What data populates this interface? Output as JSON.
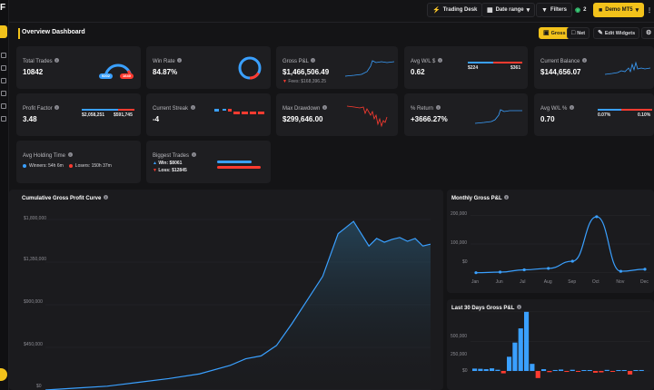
{
  "topbar": {
    "trading_desk": "Trading Desk",
    "date_range": "Date range",
    "filters": "Filters",
    "signal_count": "2",
    "account": "Demo MT5"
  },
  "page": {
    "title": "Overview Dashboard"
  },
  "controls": {
    "gross": "Gross",
    "net": "Net",
    "edit_widgets": "Edit Widgets"
  },
  "stats": {
    "total_trades": {
      "label": "Total Trades",
      "value": "10842",
      "wins": "9202",
      "losses": "1640"
    },
    "win_rate": {
      "label": "Win Rate",
      "value": "84.87%"
    },
    "gross_pnl": {
      "label": "Gross P&L",
      "value": "$1,466,506.49",
      "fees": "Fees: $168,396.25"
    },
    "avg_wl_usd": {
      "label": "Avg W/L $",
      "value": "0.62",
      "win": "$224",
      "loss": "$361"
    },
    "current_balance": {
      "label": "Current Balance",
      "value": "$144,656.07"
    },
    "profit_factor": {
      "label": "Profit Factor",
      "value": "3.48",
      "gross_win": "$2,058,251",
      "gross_loss": "$591,745"
    },
    "current_streak": {
      "label": "Current Streak",
      "value": "-4"
    },
    "max_drawdown": {
      "label": "Max Drawdown",
      "value": "$299,646.00"
    },
    "pct_return": {
      "label": "% Return",
      "value": "+3666.27%"
    },
    "avg_wl_pct": {
      "label": "Avg W/L %",
      "value": "0.70",
      "win": "0.07%",
      "loss": "0.10%"
    },
    "avg_holding": {
      "label": "Avg Holding Time",
      "winners": "Winners: 54h 6m",
      "losers": "Losers: 150h 37m"
    },
    "biggest_trades": {
      "label": "Biggest Trades",
      "win": "Win: $8061",
      "loss": "Loss: $12845"
    }
  },
  "colors": {
    "accent": "#f2c21b",
    "blue": "#3aa0ff",
    "red": "#ff3b30",
    "card": "#1e1e21"
  },
  "charts": {
    "cumulative": {
      "title": "Cumulative Gross Profit Curve",
      "y_ticks": [
        "$1,800,000",
        "$1,350,000",
        "$900,000",
        "$450,000",
        "$0"
      ]
    },
    "monthly": {
      "title": "Monthly Gross P&L",
      "y_ticks": [
        "200,000",
        "100,000",
        "$0"
      ],
      "x_ticks": [
        "Jan",
        "Jun",
        "Jul",
        "Aug",
        "Sep",
        "Oct",
        "Nov",
        "Dec"
      ]
    },
    "last30": {
      "title": "Last 30 Days Gross P&L",
      "y_ticks": [
        "500,000",
        "250,000",
        "$0"
      ]
    }
  },
  "chart_data": [
    {
      "type": "area",
      "title": "Cumulative Gross Profit Curve",
      "ylim": [
        0,
        1800000
      ],
      "y_ticks": [
        0,
        450000,
        900000,
        1350000,
        1800000
      ],
      "x": [
        0,
        8,
        16,
        24,
        32,
        40,
        48,
        52,
        56,
        60,
        64,
        68,
        72,
        76,
        80,
        84,
        86,
        88,
        90,
        92,
        94,
        96,
        98,
        100
      ],
      "series": [
        {
          "values": [
            0,
            20000,
            40000,
            80000,
            120000,
            170000,
            260000,
            330000,
            360000,
            470000,
            700000,
            950000,
            1200000,
            1650000,
            1780000,
            1520000,
            1600000,
            1560000,
            1590000,
            1610000,
            1570000,
            1600000,
            1520000,
            1540000
          ]
        }
      ]
    },
    {
      "type": "line",
      "title": "Monthly Gross P&L",
      "categories": [
        "Jan",
        "Jun",
        "Jul",
        "Aug",
        "Sep",
        "Oct",
        "Nov",
        "Dec"
      ],
      "ylim": [
        -20000,
        220000
      ],
      "series": [
        {
          "values": [
            0,
            2000,
            10000,
            15000,
            40000,
            195000,
            5000,
            12000
          ]
        }
      ]
    },
    {
      "type": "bar",
      "title": "Last 30 Days Gross P&L",
      "ylim": [
        -100000,
        560000
      ],
      "series": [
        {
          "values": [
            20000,
            18000,
            15000,
            22000,
            10000,
            -20000,
            120000,
            240000,
            360000,
            500000,
            60000,
            -60000,
            15000,
            -10000,
            8000,
            12000,
            -8000,
            10000,
            -5000,
            6000,
            4000,
            -15000,
            -12000,
            9000,
            -6000,
            7000,
            3000,
            -30000,
            5000,
            8000
          ]
        }
      ]
    }
  ]
}
